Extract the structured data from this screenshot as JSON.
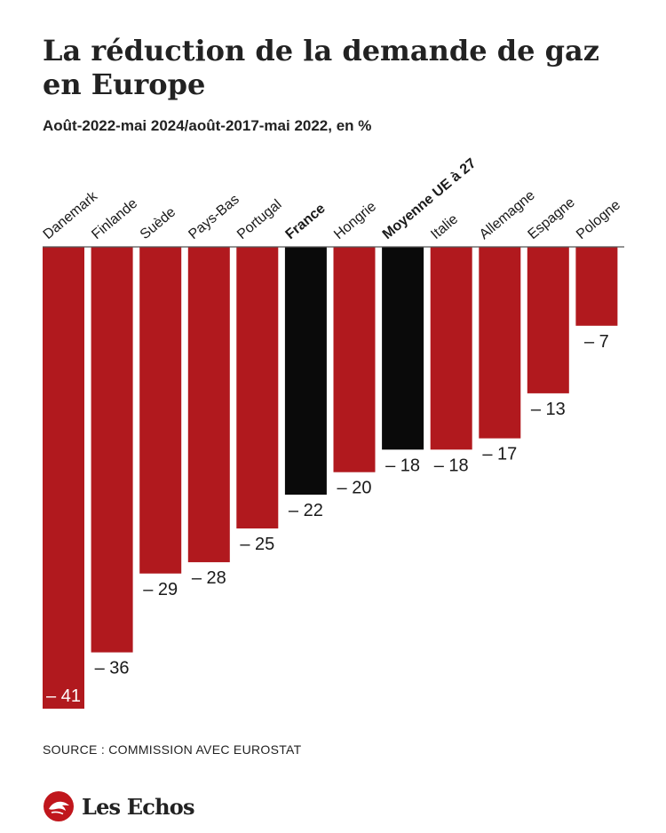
{
  "header": {
    "title": "La réduction de la demande de gaz en Europe",
    "subtitle": "Août-2022-mai 2024/août-2017-mai 2022, en %"
  },
  "footer": {
    "source": "SOURCE : COMMISSION AVEC EUROSTAT",
    "brand": "Les Echos",
    "brand_icon": "les-echos-logo-icon"
  },
  "colors": {
    "bar": "#b1191e",
    "highlight": "#0a0a0a",
    "axis": "#555555",
    "text": "#1a1a1a"
  },
  "chart_data": {
    "type": "bar",
    "title": "La réduction de la demande de gaz en Europe",
    "subtitle": "Août-2022-mai 2024/août-2017-mai 2022, en %",
    "categories": [
      "Danemark",
      "Finlande",
      "Suède",
      "Pays-Bas",
      "Portugal",
      "France",
      "Hongrie",
      "Moyenne UE à 27",
      "Italie",
      "Allemagne",
      "Espagne",
      "Pologne"
    ],
    "values": [
      -41,
      -36,
      -29,
      -28,
      -25,
      -22,
      -20,
      -18,
      -18,
      -17,
      -13,
      -7
    ],
    "value_labels": [
      "– 41",
      "– 36",
      "– 29",
      "– 28",
      "– 25",
      "– 22",
      "– 20",
      "– 18",
      "– 18",
      "– 17",
      "– 13",
      "– 7"
    ],
    "highlighted": [
      "France",
      "Moyenne UE à 27"
    ],
    "ylim": [
      -41,
      0
    ],
    "grid": false,
    "legend": "none",
    "xlabel": "",
    "ylabel": ""
  }
}
